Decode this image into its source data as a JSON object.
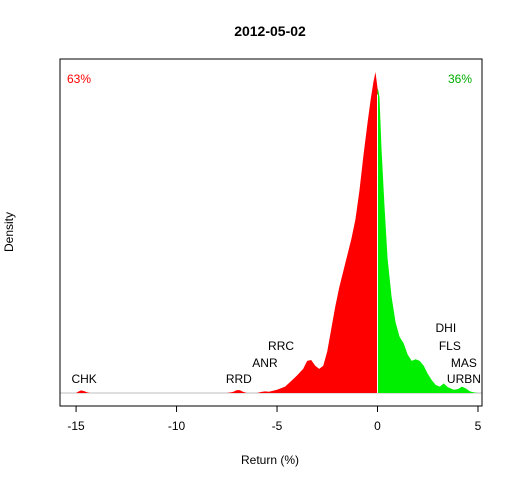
{
  "chart_data": {
    "type": "area",
    "title": "2012-05-02",
    "xlabel": "Return (%)",
    "ylabel": "Density",
    "xlim": [
      -15.8,
      5.2
    ],
    "ylim": [
      0,
      1.0
    ],
    "xticks": [
      -15,
      -10,
      -5,
      0,
      5
    ],
    "split_at": 0,
    "pct_negative": "63%",
    "pct_positive": "36%",
    "colors": {
      "negative": "#ff0000",
      "positive": "#00ee00",
      "axis": "#000000",
      "baseline": "#bebebe"
    },
    "density": {
      "x": [
        -15.6,
        -15.0,
        -14.9,
        -14.75,
        -14.6,
        -14.45,
        -14.3,
        -13.5,
        -7.5,
        -7.2,
        -7.0,
        -6.85,
        -6.7,
        -6.5,
        -6.0,
        -5.8,
        -5.6,
        -5.4,
        -5.0,
        -4.6,
        -4.3,
        -4.0,
        -3.7,
        -3.5,
        -3.3,
        -3.1,
        -2.9,
        -2.7,
        -2.5,
        -2.3,
        -2.1,
        -1.9,
        -1.7,
        -1.5,
        -1.3,
        -1.1,
        -0.9,
        -0.7,
        -0.5,
        -0.35,
        -0.2,
        -0.1,
        0,
        0.05,
        0.1,
        0.2,
        0.35,
        0.5,
        0.7,
        0.9,
        1.1,
        1.3,
        1.5,
        1.7,
        1.9,
        2.1,
        2.3,
        2.5,
        2.7,
        2.9,
        3.1,
        3.3,
        3.5,
        3.8,
        4.0,
        4.2,
        4.4,
        4.6,
        4.8,
        5.0
      ],
      "y": [
        0,
        0,
        0.004,
        0.008,
        0.006,
        0.002,
        0,
        0,
        0,
        0.003,
        0.009,
        0.009,
        0.004,
        0,
        0,
        0.003,
        0.005,
        0.004,
        0.01,
        0.02,
        0.037,
        0.055,
        0.075,
        0.1,
        0.103,
        0.085,
        0.075,
        0.085,
        0.13,
        0.2,
        0.27,
        0.33,
        0.38,
        0.43,
        0.48,
        0.54,
        0.63,
        0.74,
        0.84,
        0.91,
        0.97,
        1.0,
        0.95,
        0.94,
        0.92,
        0.76,
        0.58,
        0.42,
        0.3,
        0.22,
        0.175,
        0.155,
        0.12,
        0.1,
        0.105,
        0.1,
        0.085,
        0.06,
        0.04,
        0.025,
        0.02,
        0.03,
        0.018,
        0.01,
        0.012,
        0.02,
        0.014,
        0.005,
        0.002,
        0
      ]
    },
    "annotations": [
      {
        "text": "CHK",
        "x": -14.6,
        "level": 0
      },
      {
        "text": "RRD",
        "x": -6.9,
        "level": 0
      },
      {
        "text": "ANR",
        "x": -5.6,
        "level": 1
      },
      {
        "text": "RRC",
        "x": -4.8,
        "level": 2
      },
      {
        "text": "DHI",
        "x": 3.4,
        "level": 3
      },
      {
        "text": "FLS",
        "x": 3.6,
        "level": 2
      },
      {
        "text": "MAS",
        "x": 4.3,
        "level": 1
      },
      {
        "text": "URBN",
        "x": 4.3,
        "level": 0
      }
    ]
  }
}
